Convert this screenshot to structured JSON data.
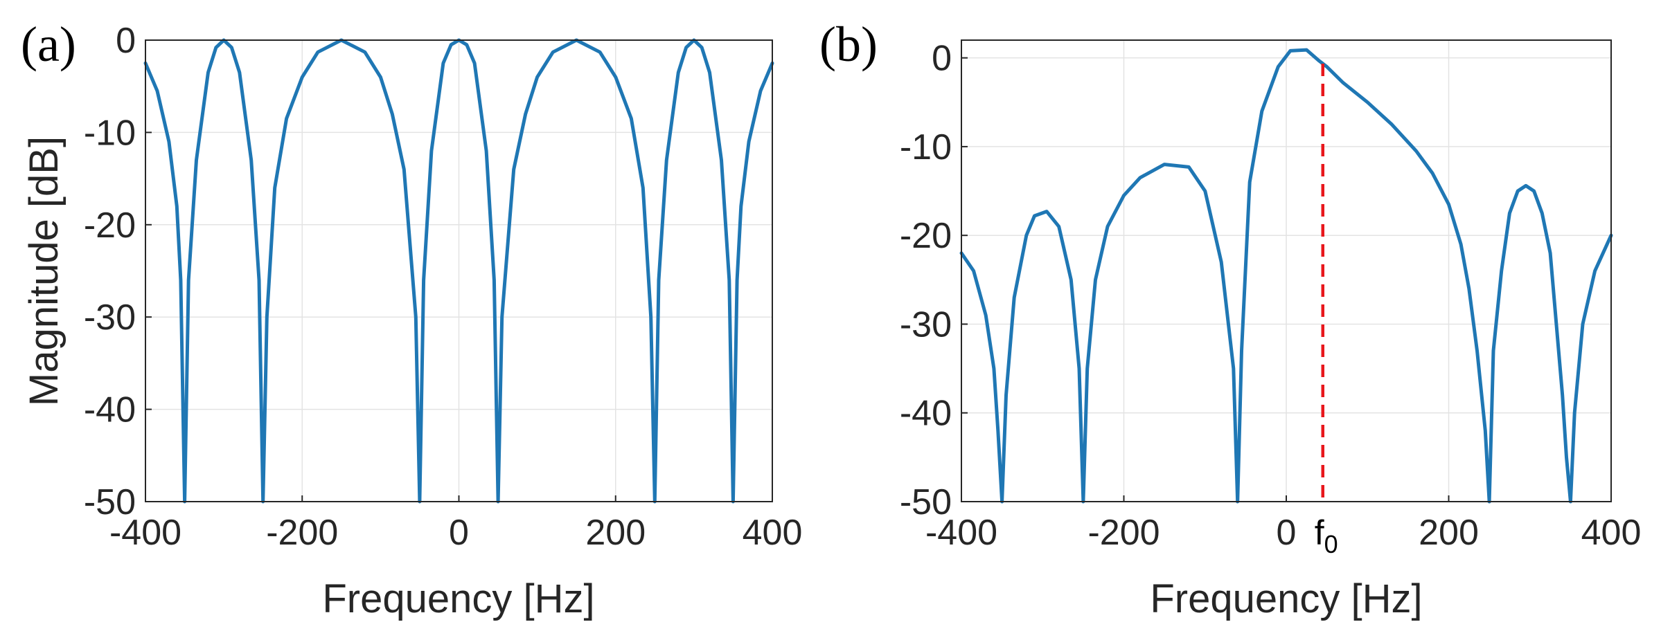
{
  "colors": {
    "series": "#1f77b4",
    "marker": "#e8171c",
    "axis": "#262626",
    "grid": "#e3e3e3"
  },
  "chart_data": [
    {
      "panel_label": "(a)",
      "type": "line",
      "title": "",
      "xlabel": "Frequency [Hz]",
      "ylabel": "Magnitude [dB]",
      "xlim": [
        -400,
        400
      ],
      "ylim": [
        -50,
        0
      ],
      "xticks": [
        -400,
        -200,
        0,
        200,
        400
      ],
      "yticks": [
        0,
        -10,
        -20,
        -30,
        -40,
        -50
      ],
      "grid": true,
      "series": [
        {
          "name": "magnitude",
          "x": [
            -400,
            -385,
            -370,
            -360,
            -355,
            -350,
            -345,
            -335,
            -320,
            -310,
            -300,
            -290,
            -280,
            -265,
            -255,
            -250,
            -245,
            -235,
            -220,
            -200,
            -180,
            -150,
            -120,
            -100,
            -85,
            -70,
            -55,
            -50,
            -45,
            -35,
            -20,
            -10,
            0,
            10,
            20,
            35,
            45,
            50,
            55,
            70,
            85,
            100,
            120,
            150,
            180,
            200,
            220,
            235,
            245,
            250,
            255,
            265,
            280,
            290,
            300,
            310,
            320,
            335,
            345,
            350,
            355,
            360,
            370,
            385,
            400
          ],
          "y": [
            -2.5,
            -5.5,
            -11,
            -18,
            -26,
            -50,
            -26,
            -13,
            -3.5,
            -0.8,
            0,
            -0.8,
            -3.5,
            -13,
            -26,
            -50,
            -30,
            -16,
            -8.5,
            -4,
            -1.3,
            0,
            -1.3,
            -4,
            -8,
            -14,
            -30,
            -50,
            -26,
            -12,
            -2.5,
            -0.5,
            0,
            -0.5,
            -2.5,
            -12,
            -26,
            -50,
            -30,
            -14,
            -8,
            -4,
            -1.3,
            0,
            -1.3,
            -4,
            -8.5,
            -16,
            -30,
            -50,
            -26,
            -13,
            -3.5,
            -0.8,
            0,
            -0.8,
            -3.5,
            -13,
            -26,
            -50,
            -26,
            -18,
            -11,
            -5.5,
            -2.5
          ]
        }
      ]
    },
    {
      "panel_label": "(b)",
      "type": "line",
      "title": "",
      "xlabel": "Frequency [Hz]",
      "ylabel": "",
      "xlim": [
        -400,
        400
      ],
      "ylim": [
        -50,
        2
      ],
      "xticks": [
        -400,
        -200,
        0,
        200,
        400
      ],
      "yticks": [
        0,
        -10,
        -20,
        -30,
        -40,
        -50
      ],
      "grid": true,
      "series": [
        {
          "name": "magnitude",
          "x": [
            -400,
            -385,
            -370,
            -360,
            -355,
            -350,
            -345,
            -335,
            -320,
            -310,
            -295,
            -280,
            -265,
            -255,
            -250,
            -245,
            -235,
            -220,
            -200,
            -180,
            -150,
            -120,
            -100,
            -80,
            -65,
            -60,
            -55,
            -45,
            -30,
            -10,
            5,
            25,
            40,
            50,
            70,
            100,
            130,
            160,
            180,
            200,
            215,
            225,
            235,
            245,
            250,
            255,
            265,
            275,
            285,
            295,
            305,
            315,
            325,
            340,
            345,
            350,
            355,
            365,
            380,
            400
          ],
          "y": [
            -22,
            -24,
            -29,
            -35,
            -42,
            -50,
            -38,
            -27,
            -20,
            -17.8,
            -17.3,
            -19,
            -25,
            -35,
            -50,
            -35,
            -25,
            -19,
            -15.5,
            -13.5,
            -12,
            -12.3,
            -15,
            -23,
            -35,
            -50,
            -33,
            -14,
            -6,
            -1,
            0.8,
            0.9,
            -0.3,
            -1,
            -2.8,
            -5,
            -7.5,
            -10.5,
            -13,
            -16.5,
            -21,
            -26,
            -33,
            -42,
            -50,
            -33,
            -24,
            -17.5,
            -15,
            -14.4,
            -15,
            -17.5,
            -22,
            -38,
            -45,
            -50,
            -40,
            -30,
            -24,
            -20
          ]
        }
      ],
      "marker": {
        "x": 45,
        "label": "f",
        "subscript": "0",
        "style": "dashed"
      }
    }
  ]
}
